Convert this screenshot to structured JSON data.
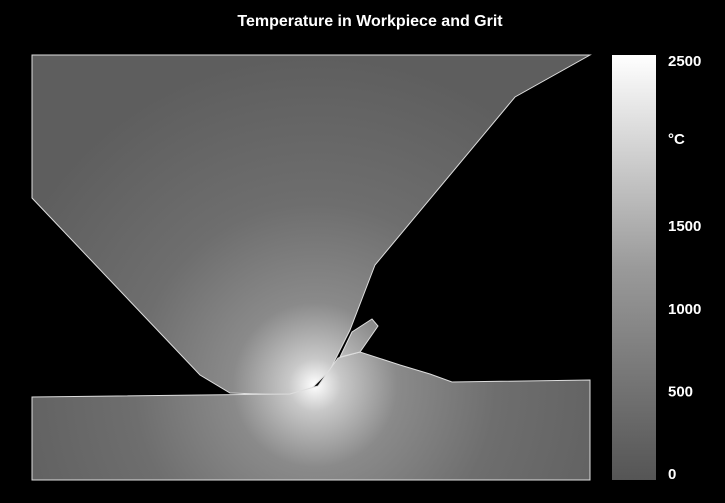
{
  "chart_data": {
    "type": "field",
    "title": "Temperature in Workpiece and Grit",
    "colorbar": {
      "label": "°C",
      "lim": [
        0,
        2500
      ],
      "ticks": [
        0,
        500,
        1000,
        1500,
        2500
      ]
    }
  }
}
